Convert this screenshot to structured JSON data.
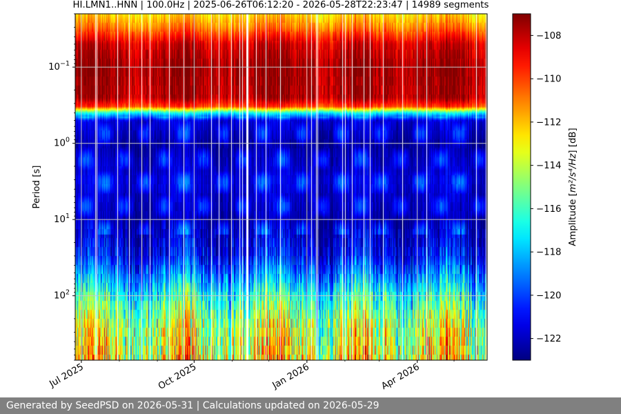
{
  "chart_data": {
    "type": "heatmap",
    "title": "HI.LMN1..HNN | 100.0Hz | 2025-06-26T06:12:20 - 2026-05-28T22:23:47 | 14989 segments",
    "ylabel": "Period [s]",
    "y_scale": "log",
    "y_inverted": true,
    "ylim": [
      0.02,
      700
    ],
    "y_ticks": [
      {
        "value": 0.1,
        "base": "10",
        "exp": "−1"
      },
      {
        "value": 1,
        "base": "10",
        "exp": "0"
      },
      {
        "value": 10,
        "base": "10",
        "exp": "1"
      },
      {
        "value": 100,
        "base": "10",
        "exp": "2"
      }
    ],
    "x_range": [
      "2025-06-26",
      "2026-05-28"
    ],
    "x_ticks": [
      {
        "date": "2025-07-01",
        "label": "Jul 2025"
      },
      {
        "date": "2025-10-01",
        "label": "Oct 2025"
      },
      {
        "date": "2026-01-01",
        "label": "Jan 2026"
      },
      {
        "date": "2026-04-01",
        "label": "Apr 2026"
      }
    ],
    "grid": true,
    "colormap": "jet",
    "colorbar": {
      "label_prefix": "Amplitude [",
      "label_math": "m²/s⁴/Hz",
      "label_suffix": "] [dB]",
      "vmin": -123,
      "vmax": -107,
      "ticks": [
        -108,
        -110,
        -112,
        -114,
        -116,
        -118,
        -120,
        -122
      ],
      "tick_labels": [
        "−108",
        "−110",
        "−112",
        "−114",
        "−116",
        "−118",
        "−120",
        "−122"
      ]
    },
    "amplitude_profile_db": [
      {
        "period": 0.02,
        "db": -112.5
      },
      {
        "period": 0.03,
        "db": -111
      },
      {
        "period": 0.05,
        "db": -108.3
      },
      {
        "period": 0.1,
        "db": -107.5
      },
      {
        "period": 0.25,
        "db": -107.8
      },
      {
        "period": 0.33,
        "db": -110
      },
      {
        "period": 0.4,
        "db": -117
      },
      {
        "period": 0.5,
        "db": -121.5
      },
      {
        "period": 1,
        "db": -122.5
      },
      {
        "period": 3,
        "db": -121.5
      },
      {
        "period": 10,
        "db": -122.3
      },
      {
        "period": 30,
        "db": -121
      },
      {
        "period": 60,
        "db": -118.5
      },
      {
        "period": 100,
        "db": -116.5
      },
      {
        "period": 250,
        "db": -114
      },
      {
        "period": 700,
        "db": -113
      }
    ],
    "segments": 14989
  },
  "footer": {
    "text": "Generated by SeedPSD on 2026-05-31 | Calculations updated on 2026-05-29"
  }
}
